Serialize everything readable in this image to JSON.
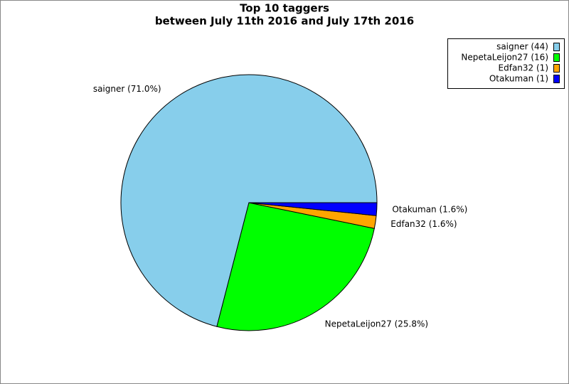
{
  "chart_data": {
    "type": "pie",
    "title": "Top 10 taggers",
    "subtitle": "between July 11th 2016 and July 17th 2016",
    "values": [
      44,
      16,
      1,
      1
    ],
    "labels": [
      "saigner (71.0%)",
      "NepetaLeijon27 (25.8%)",
      "Edfan32 (1.6%)",
      "Otakuman (1.6%)"
    ],
    "legend": [
      "saigner (44)",
      "NepetaLeijon27 (16)",
      "Edfan32 (1)",
      "Otakuman (1)"
    ],
    "colors": [
      "#87ceeb",
      "#00ff00",
      "#ffa500",
      "#0000ff"
    ],
    "legend_position": "upper right"
  }
}
